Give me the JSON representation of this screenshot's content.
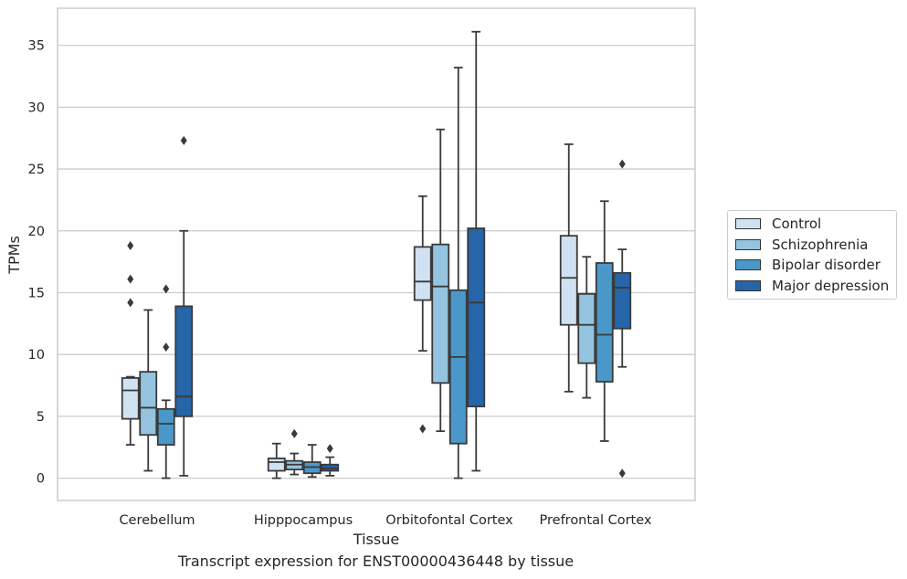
{
  "chart_data": {
    "type": "box",
    "title": "",
    "xlabel": "Tissue",
    "ylabel": "TPMs",
    "ylim": [
      -1.8,
      38
    ],
    "yticks": [
      0,
      5,
      10,
      15,
      20,
      25,
      30,
      35
    ],
    "grid": "horizontal",
    "legend_placement": "right",
    "categories": [
      "Cerebellum",
      "Hipppocampus",
      "Orbitofontal Cortex",
      "Prefrontal Cortex"
    ],
    "series": [
      {
        "name": "Control",
        "color": "#d0e1f2",
        "boxes": [
          {
            "q1": 4.8,
            "median": 7.1,
            "q3": 8.1,
            "whisker_low": 2.7,
            "whisker_high": 8.2,
            "outliers": [
              14.2,
              16.1,
              18.8
            ]
          },
          {
            "q1": 0.6,
            "median": 1.3,
            "q3": 1.6,
            "whisker_low": 0.0,
            "whisker_high": 2.8,
            "outliers": []
          },
          {
            "q1": 14.4,
            "median": 15.9,
            "q3": 18.7,
            "whisker_low": 10.3,
            "whisker_high": 22.8,
            "outliers": [
              4.0
            ]
          },
          {
            "q1": 12.4,
            "median": 16.2,
            "q3": 19.6,
            "whisker_low": 7.0,
            "whisker_high": 27.0,
            "outliers": []
          }
        ]
      },
      {
        "name": "Schizophrenia",
        "color": "#94c4df",
        "boxes": [
          {
            "q1": 3.5,
            "median": 5.7,
            "q3": 8.6,
            "whisker_low": 0.6,
            "whisker_high": 13.6,
            "outliers": []
          },
          {
            "q1": 0.7,
            "median": 1.1,
            "q3": 1.4,
            "whisker_low": 0.3,
            "whisker_high": 2.0,
            "outliers": [
              3.6
            ]
          },
          {
            "q1": 7.7,
            "median": 15.5,
            "q3": 18.9,
            "whisker_low": 3.8,
            "whisker_high": 28.2,
            "outliers": []
          },
          {
            "q1": 9.3,
            "median": 12.4,
            "q3": 14.9,
            "whisker_low": 6.5,
            "whisker_high": 17.9,
            "outliers": []
          }
        ]
      },
      {
        "name": "Bipolar disorder",
        "color": "#4a98c9",
        "boxes": [
          {
            "q1": 2.7,
            "median": 4.4,
            "q3": 5.6,
            "whisker_low": 0.0,
            "whisker_high": 6.3,
            "outliers": [
              10.6,
              15.3
            ]
          },
          {
            "q1": 0.4,
            "median": 0.9,
            "q3": 1.3,
            "whisker_low": 0.1,
            "whisker_high": 2.7,
            "outliers": []
          },
          {
            "q1": 2.8,
            "median": 9.8,
            "q3": 15.2,
            "whisker_low": 0.0,
            "whisker_high": 33.2,
            "outliers": []
          },
          {
            "q1": 7.8,
            "median": 11.6,
            "q3": 17.4,
            "whisker_low": 3.0,
            "whisker_high": 22.4,
            "outliers": []
          }
        ]
      },
      {
        "name": "Major depression",
        "color": "#2565a8",
        "boxes": [
          {
            "q1": 5.0,
            "median": 6.6,
            "q3": 13.9,
            "whisker_low": 0.2,
            "whisker_high": 20.0,
            "outliers": [
              27.3
            ]
          },
          {
            "q1": 0.6,
            "median": 0.8,
            "q3": 1.1,
            "whisker_low": 0.2,
            "whisker_high": 1.7,
            "outliers": [
              2.4
            ]
          },
          {
            "q1": 5.8,
            "median": 14.2,
            "q3": 20.2,
            "whisker_low": 0.6,
            "whisker_high": 36.1,
            "outliers": []
          },
          {
            "q1": 12.1,
            "median": 15.4,
            "q3": 16.6,
            "whisker_low": 9.0,
            "whisker_high": 18.5,
            "outliers": [
              0.4,
              25.4
            ]
          }
        ]
      }
    ]
  },
  "caption": "Transcript expression for ENST00000436448 by tissue"
}
